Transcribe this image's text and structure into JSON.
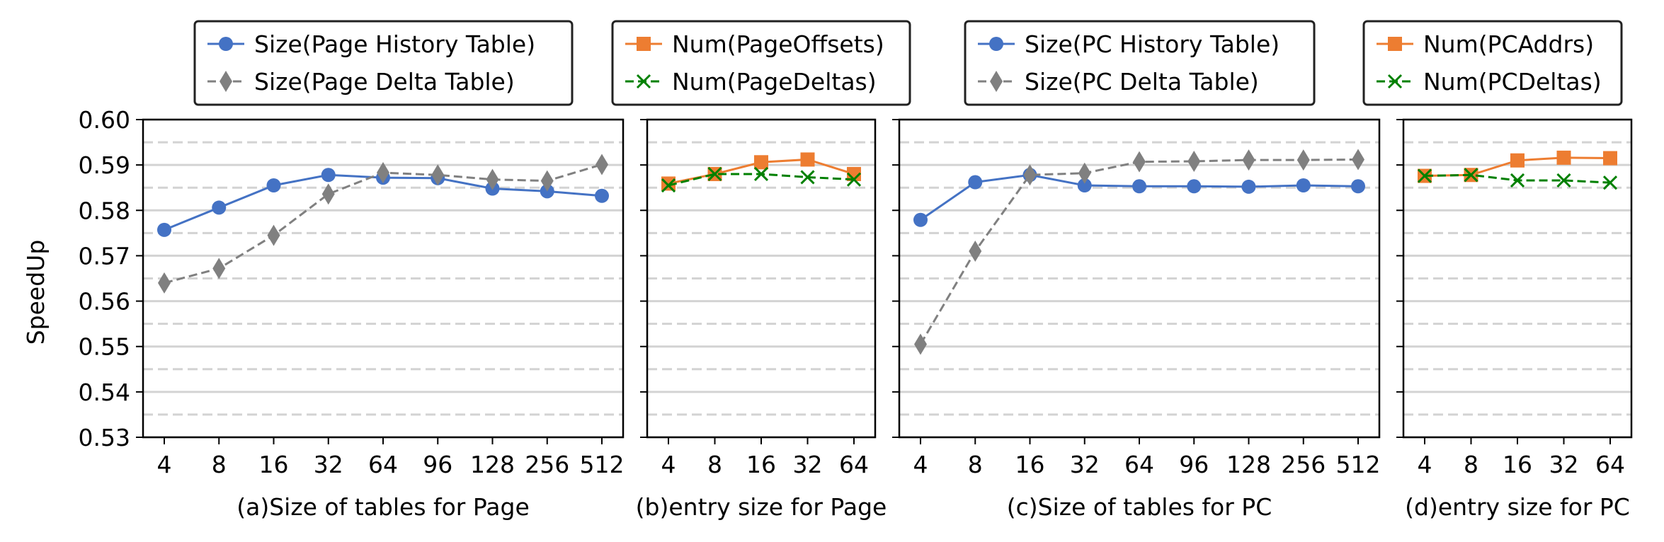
{
  "figure": {
    "ylabel": "SpeedUp",
    "ylim": [
      0.53,
      0.6
    ],
    "yticks": [
      "0.53",
      "0.54",
      "0.55",
      "0.56",
      "0.57",
      "0.58",
      "0.59",
      "0.60"
    ],
    "grid": "horizontal solid at labeled ticks, dashed at half ticks",
    "colors": {
      "blue": "#4472c4",
      "gray": "#808080",
      "orange": "#ed7d31",
      "green": "#008000"
    }
  },
  "chart_data": [
    {
      "type": "line",
      "xlabel": "(a)Size of tables for Page",
      "categories": [
        "4",
        "8",
        "16",
        "32",
        "64",
        "96",
        "128",
        "256",
        "512"
      ],
      "ylim": [
        0.53,
        0.6
      ],
      "legend": "top",
      "series": [
        {
          "name": "Size(Page History Table)",
          "marker": "circle",
          "style": "solid",
          "color": "#4472c4",
          "values": [
            0.5757,
            0.5806,
            0.5855,
            0.5878,
            0.5872,
            0.5871,
            0.5848,
            0.5842,
            0.5832
          ]
        },
        {
          "name": "Size(Page Delta Table)",
          "marker": "diamond",
          "style": "dashed",
          "color": "#808080",
          "values": [
            0.564,
            0.5672,
            0.5745,
            0.5836,
            0.5883,
            0.5878,
            0.5868,
            0.5865,
            0.5901
          ]
        }
      ]
    },
    {
      "type": "line",
      "xlabel": "(b)entry size for Page",
      "categories": [
        "4",
        "8",
        "16",
        "32",
        "64"
      ],
      "ylim": [
        0.53,
        0.6
      ],
      "legend": "top",
      "series": [
        {
          "name": "Num(PageOffsets)",
          "marker": "square",
          "style": "solid",
          "color": "#ed7d31",
          "values": [
            0.5859,
            0.588,
            0.5906,
            0.5912,
            0.588
          ]
        },
        {
          "name": "Num(PageDeltas)",
          "marker": "x",
          "style": "dashed",
          "color": "#008000",
          "values": [
            0.5855,
            0.588,
            0.588,
            0.5873,
            0.5868
          ]
        }
      ]
    },
    {
      "type": "line",
      "xlabel": "(c)Size of tables for PC",
      "categories": [
        "4",
        "8",
        "16",
        "32",
        "64",
        "96",
        "128",
        "256",
        "512"
      ],
      "ylim": [
        0.53,
        0.6
      ],
      "legend": "top",
      "series": [
        {
          "name": "Size(PC History Table)",
          "marker": "circle",
          "style": "solid",
          "color": "#4472c4",
          "values": [
            0.5779,
            0.5862,
            0.5878,
            0.5855,
            0.5853,
            0.5853,
            0.5852,
            0.5855,
            0.5853
          ]
        },
        {
          "name": "Size(PC Delta Table)",
          "marker": "diamond",
          "style": "dashed",
          "color": "#808080",
          "values": [
            0.5505,
            0.571,
            0.5878,
            0.5882,
            0.5907,
            0.5908,
            0.5911,
            0.5911,
            0.5912
          ]
        }
      ]
    },
    {
      "type": "line",
      "xlabel": "(d)entry size for PC",
      "categories": [
        "4",
        "8",
        "16",
        "32",
        "64"
      ],
      "ylim": [
        0.53,
        0.6
      ],
      "legend": "top",
      "series": [
        {
          "name": "Num(PCAddrs)",
          "marker": "square",
          "style": "solid",
          "color": "#ed7d31",
          "values": [
            0.5876,
            0.5878,
            0.591,
            0.5916,
            0.5915
          ]
        },
        {
          "name": "Num(PCDeltas)",
          "marker": "x",
          "style": "dashed",
          "color": "#008000",
          "values": [
            0.5876,
            0.5878,
            0.5866,
            0.5866,
            0.5861
          ]
        }
      ]
    }
  ]
}
